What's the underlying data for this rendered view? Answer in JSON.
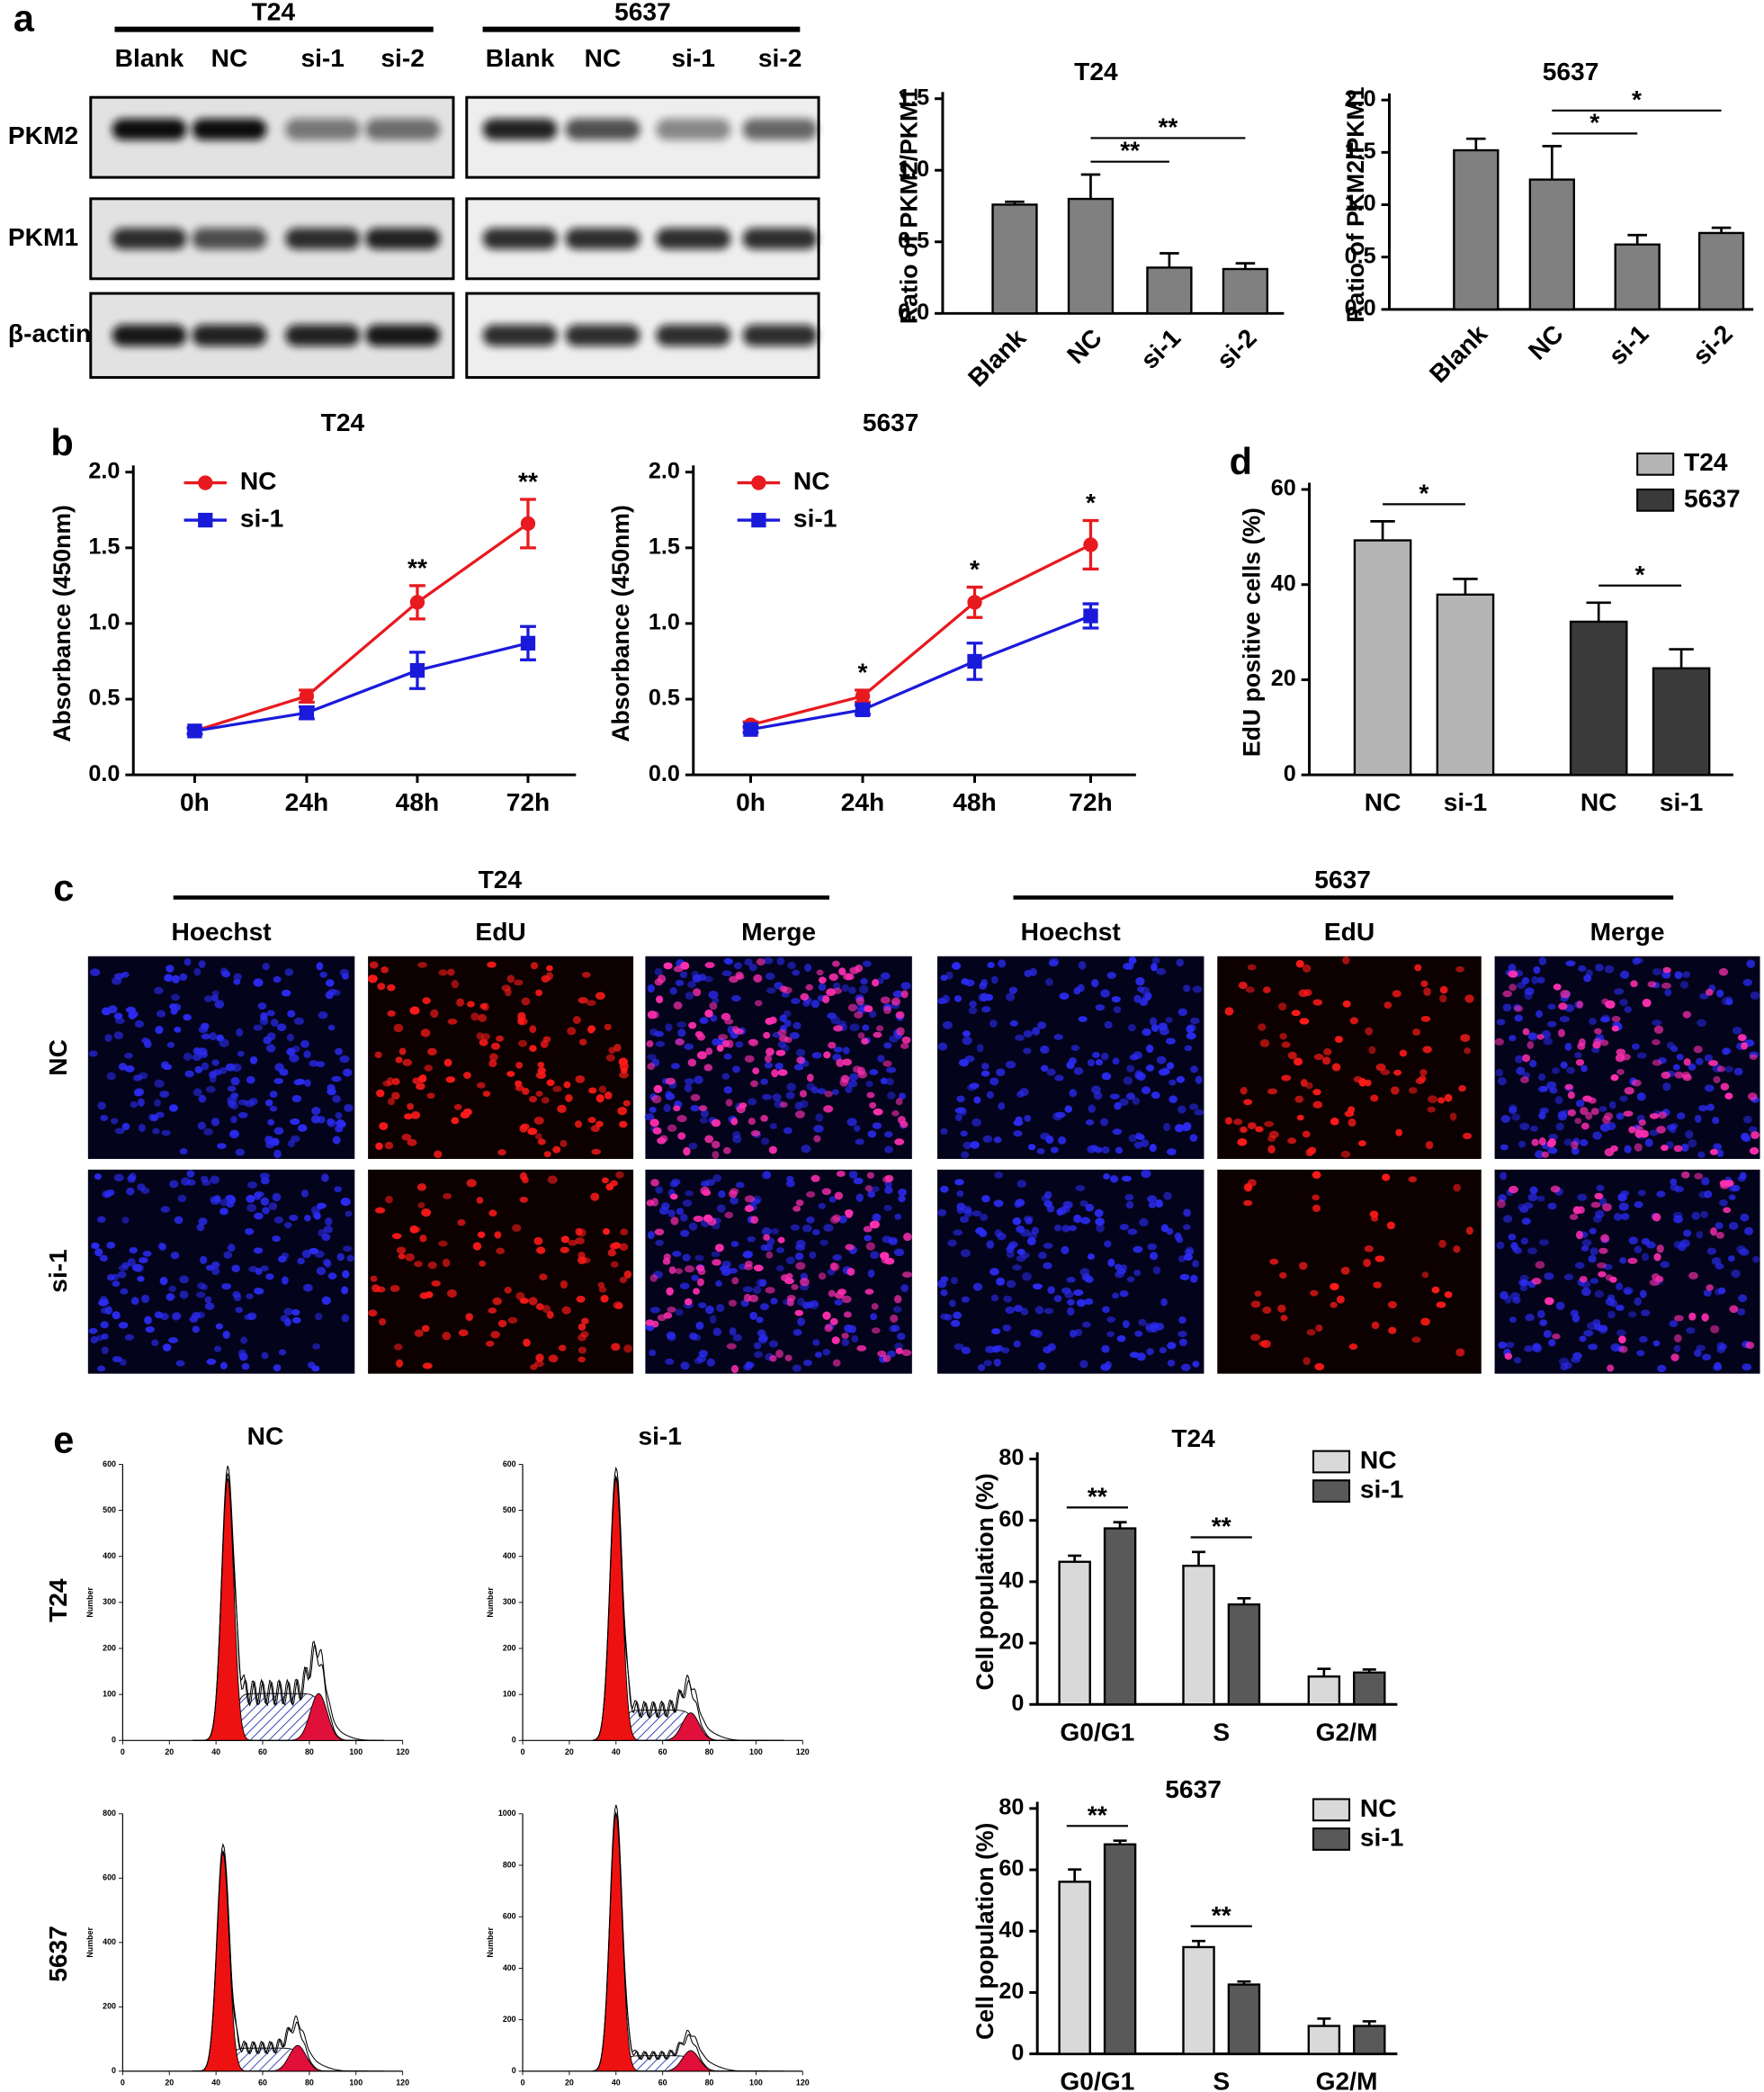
{
  "panel_labels": [
    "a",
    "b",
    "c",
    "d",
    "e"
  ],
  "western_blot": {
    "groups": [
      "T24",
      "5637"
    ],
    "lanes": [
      [
        "Blank",
        "NC",
        "si-1",
        "si-2"
      ],
      [
        "Blank",
        "NC",
        "si-1",
        "si-2"
      ]
    ],
    "rows": [
      "PKM2",
      "PKM1",
      "β-actin"
    ]
  },
  "edu_staining": {
    "groups": [
      "T24",
      "5637"
    ],
    "channels": [
      [
        "Hoechst",
        "EdU",
        "Merge"
      ],
      [
        "Hoechst",
        "EdU",
        "Merge"
      ]
    ],
    "rows": [
      "NC",
      "si-1"
    ]
  },
  "flow_cytometry": {
    "columns": [
      "NC",
      "si-1"
    ],
    "rows": [
      "T24",
      "5637"
    ],
    "plots": [
      {
        "ylabel": "Number",
        "xlim": [
          0,
          120
        ],
        "xticks": [
          0,
          20,
          40,
          60,
          80,
          100,
          120
        ],
        "ylim": [
          0,
          600
        ],
        "yticks": [
          0,
          100,
          200,
          300,
          400,
          500,
          600
        ]
      },
      {
        "ylabel": "Number",
        "xlim": [
          0,
          120
        ],
        "xticks": [
          0,
          20,
          40,
          60,
          80,
          100,
          120
        ],
        "ylim": [
          0,
          600
        ],
        "yticks": [
          0,
          100,
          200,
          300,
          400,
          500,
          600
        ]
      },
      {
        "ylabel": "Number",
        "xlim": [
          0,
          120
        ],
        "xticks": [
          0,
          20,
          40,
          60,
          80,
          100,
          120
        ],
        "ylim": [
          0,
          800
        ],
        "yticks": [
          0,
          200,
          400,
          600,
          800
        ]
      },
      {
        "ylabel": "Number",
        "xlim": [
          0,
          120
        ],
        "xticks": [
          0,
          20,
          40,
          60,
          80,
          100,
          120
        ],
        "ylim": [
          0,
          1000
        ],
        "yticks": [
          0,
          200,
          400,
          600,
          800,
          1000
        ]
      }
    ]
  },
  "chart_data": [
    {
      "type": "bar",
      "title": "T24",
      "ylabel": "Ratio of PKM2/PKM1",
      "categories": [
        "Blank",
        "NC",
        "si-1",
        "si-2"
      ],
      "values": [
        0.76,
        0.8,
        0.32,
        0.31
      ],
      "errors": [
        0.02,
        0.17,
        0.1,
        0.04
      ],
      "color": "#808080",
      "ylim": [
        0,
        1.5
      ],
      "yticks": [
        {
          "value": 0,
          "label": "0.0"
        },
        0.5,
        {
          "value": 1,
          "label": "1.0"
        },
        1.5
      ],
      "significance": [
        null,
        null,
        "**",
        "**"
      ]
    },
    {
      "type": "bar",
      "title": "5637",
      "ylabel": "Ratio of PKM2/PKM1",
      "categories": [
        "Blank",
        "NC",
        "si-1",
        "si-2"
      ],
      "values": [
        1.52,
        1.24,
        0.62,
        0.73
      ],
      "errors": [
        0.11,
        0.32,
        0.09,
        0.05
      ],
      "color": "#808080",
      "ylim": [
        0,
        2
      ],
      "yticks": [
        {
          "value": 0,
          "label": "0.0"
        },
        0.5,
        {
          "value": 1,
          "label": "1.0"
        },
        1.5,
        {
          "value": 2,
          "label": "2.0"
        }
      ],
      "significance": [
        null,
        null,
        "*",
        "*"
      ]
    },
    {
      "type": "line",
      "title": "T24",
      "ylabel": "Absorbance (450nm)",
      "categories": [
        "0h",
        "24h",
        "48h",
        "72h"
      ],
      "series": [
        {
          "name": "NC",
          "color": "#e8191f",
          "values": [
            0.29,
            0.52,
            1.14,
            1.66
          ],
          "errors": [
            0.02,
            0.04,
            0.11,
            0.16
          ]
        },
        {
          "name": "si-1",
          "color": "#1a1adb",
          "values": [
            0.29,
            0.41,
            0.69,
            0.87
          ],
          "errors": [
            0.02,
            0.04,
            0.12,
            0.11
          ]
        }
      ],
      "ylim": [
        0,
        2
      ],
      "yticks": [
        {
          "value": 0,
          "label": "0.0"
        },
        0.5,
        {
          "value": 1,
          "label": "1.0"
        },
        1.5,
        {
          "value": 2,
          "label": "2.0"
        }
      ],
      "significance": [
        null,
        null,
        "**",
        "**"
      ],
      "legend": "upper-left"
    },
    {
      "type": "line",
      "title": "5637",
      "ylabel": "Absorbance (450nm)",
      "categories": [
        "0h",
        "24h",
        "48h",
        "72h"
      ],
      "series": [
        {
          "name": "NC",
          "color": "#e8191f",
          "values": [
            0.33,
            0.52,
            1.14,
            1.52
          ],
          "errors": [
            0.02,
            0.04,
            0.1,
            0.16
          ]
        },
        {
          "name": "si-1",
          "color": "#1a1adb",
          "values": [
            0.3,
            0.43,
            0.75,
            1.05
          ],
          "errors": [
            0.02,
            0.03,
            0.12,
            0.08
          ]
        }
      ],
      "ylim": [
        0,
        2
      ],
      "yticks": [
        {
          "value": 0,
          "label": "0.0"
        },
        0.5,
        {
          "value": 1,
          "label": "1.0"
        },
        1.5,
        {
          "value": 2,
          "label": "2.0"
        }
      ],
      "significance": [
        null,
        "*",
        "*",
        "*"
      ],
      "legend": "upper-left"
    },
    {
      "type": "bar",
      "ylabel": "EdU positive cells (%)",
      "categories": [
        "NC",
        "si-1",
        "NC",
        "si-1"
      ],
      "series": [
        {
          "name": "T24",
          "color": "#b4b4b4",
          "values": [
            49.3,
            37.9,
            null,
            null
          ],
          "errors": [
            4,
            3.3,
            null,
            null
          ]
        },
        {
          "name": "5637",
          "color": "#3a3a3a",
          "values": [
            null,
            null,
            32.2,
            22.4
          ],
          "errors": [
            null,
            null,
            4,
            4
          ]
        }
      ],
      "ylim": [
        0,
        60
      ],
      "yticks": [
        0,
        20,
        40,
        60
      ],
      "significance": [
        null,
        "*",
        null,
        "*"
      ],
      "legend": "upper-right"
    },
    {
      "type": "bar",
      "title": "T24",
      "ylabel": "Cell population (%)",
      "categories": [
        "G0/G1",
        "S",
        "G2/M"
      ],
      "series": [
        {
          "name": "NC",
          "color": "#d9d9d9",
          "values": [
            46.5,
            45.2,
            9.1
          ],
          "errors": [
            2,
            4.5,
            2.5
          ]
        },
        {
          "name": "si-1",
          "color": "#595959",
          "values": [
            57.4,
            32.6,
            10.4
          ],
          "errors": [
            2,
            2,
            1
          ]
        }
      ],
      "ylim": [
        0,
        80
      ],
      "yticks": [
        0,
        20,
        40,
        60,
        80
      ],
      "significance": [
        "**",
        "**",
        null
      ],
      "legend": "upper-right"
    },
    {
      "type": "bar",
      "title": "5637",
      "ylabel": "Cell population (%)",
      "categories": [
        "G0/G1",
        "S",
        "G2/M"
      ],
      "series": [
        {
          "name": "NC",
          "color": "#d9d9d9",
          "values": [
            56.1,
            34.8,
            9.1
          ],
          "errors": [
            4,
            2,
            2.4
          ]
        },
        {
          "name": "si-1",
          "color": "#595959",
          "values": [
            68.3,
            22.6,
            9.1
          ],
          "errors": [
            1.2,
            1,
            1.5
          ]
        }
      ],
      "ylim": [
        0,
        80
      ],
      "yticks": [
        0,
        20,
        40,
        60,
        80
      ],
      "significance": [
        "**",
        "**",
        null
      ],
      "legend": "upper-right"
    }
  ]
}
